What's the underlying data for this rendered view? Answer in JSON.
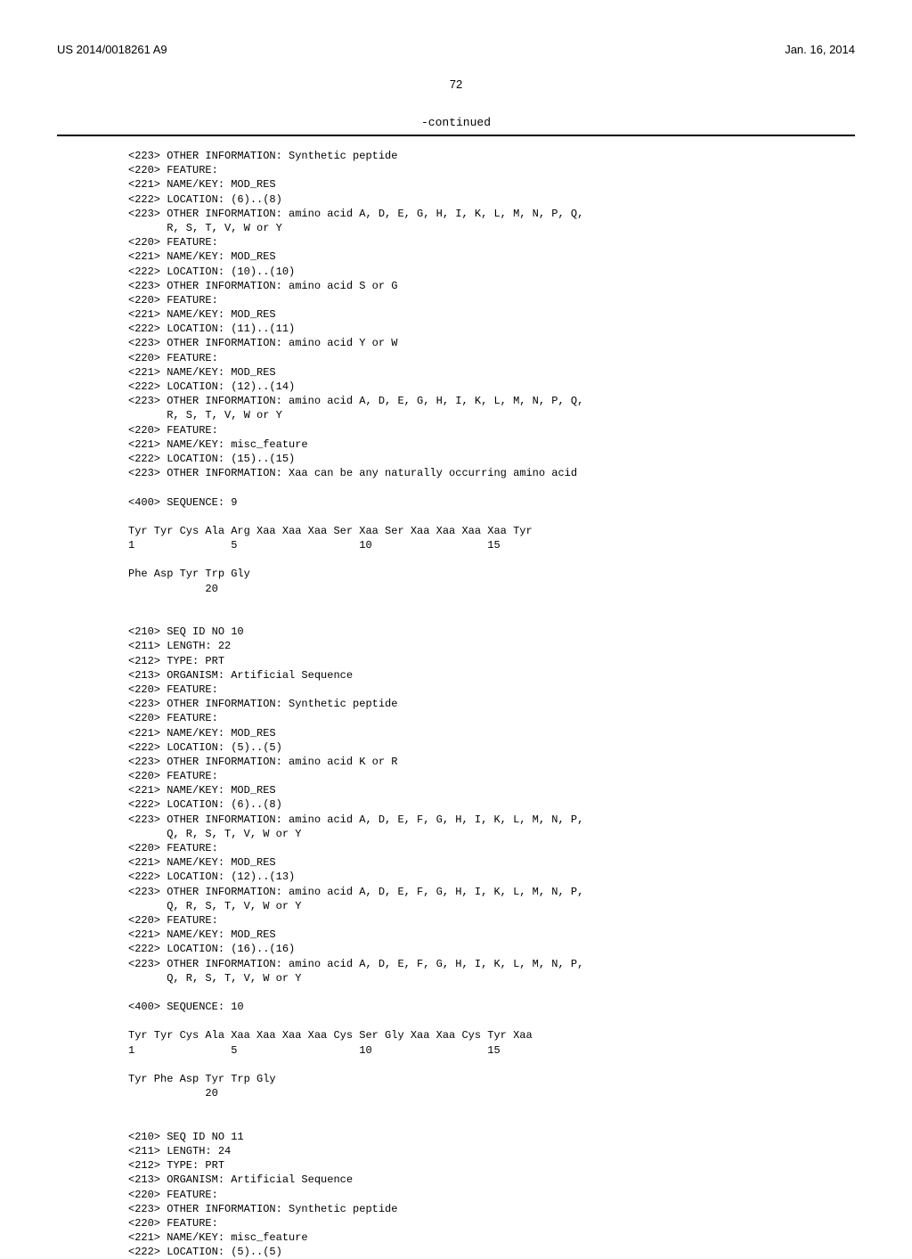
{
  "header": {
    "patent_number": "US 2014/0018261 A9",
    "date": "Jan. 16, 2014"
  },
  "page_number": "72",
  "continued": "-continued",
  "lines": [
    "<223> OTHER INFORMATION: Synthetic peptide",
    "<220> FEATURE:",
    "<221> NAME/KEY: MOD_RES",
    "<222> LOCATION: (6)..(8)",
    "<223> OTHER INFORMATION: amino acid A, D, E, G, H, I, K, L, M, N, P, Q,",
    "      R, S, T, V, W or Y",
    "<220> FEATURE:",
    "<221> NAME/KEY: MOD_RES",
    "<222> LOCATION: (10)..(10)",
    "<223> OTHER INFORMATION: amino acid S or G",
    "<220> FEATURE:",
    "<221> NAME/KEY: MOD_RES",
    "<222> LOCATION: (11)..(11)",
    "<223> OTHER INFORMATION: amino acid Y or W",
    "<220> FEATURE:",
    "<221> NAME/KEY: MOD_RES",
    "<222> LOCATION: (12)..(14)",
    "<223> OTHER INFORMATION: amino acid A, D, E, G, H, I, K, L, M, N, P, Q,",
    "      R, S, T, V, W or Y",
    "<220> FEATURE:",
    "<221> NAME/KEY: misc_feature",
    "<222> LOCATION: (15)..(15)",
    "<223> OTHER INFORMATION: Xaa can be any naturally occurring amino acid",
    "",
    "<400> SEQUENCE: 9",
    "",
    "Tyr Tyr Cys Ala Arg Xaa Xaa Xaa Ser Xaa Ser Xaa Xaa Xaa Xaa Tyr",
    "1               5                   10                  15",
    "",
    "Phe Asp Tyr Trp Gly",
    "            20",
    "",
    "",
    "<210> SEQ ID NO 10",
    "<211> LENGTH: 22",
    "<212> TYPE: PRT",
    "<213> ORGANISM: Artificial Sequence",
    "<220> FEATURE:",
    "<223> OTHER INFORMATION: Synthetic peptide",
    "<220> FEATURE:",
    "<221> NAME/KEY: MOD_RES",
    "<222> LOCATION: (5)..(5)",
    "<223> OTHER INFORMATION: amino acid K or R",
    "<220> FEATURE:",
    "<221> NAME/KEY: MOD_RES",
    "<222> LOCATION: (6)..(8)",
    "<223> OTHER INFORMATION: amino acid A, D, E, F, G, H, I, K, L, M, N, P,",
    "      Q, R, S, T, V, W or Y",
    "<220> FEATURE:",
    "<221> NAME/KEY: MOD_RES",
    "<222> LOCATION: (12)..(13)",
    "<223> OTHER INFORMATION: amino acid A, D, E, F, G, H, I, K, L, M, N, P,",
    "      Q, R, S, T, V, W or Y",
    "<220> FEATURE:",
    "<221> NAME/KEY: MOD_RES",
    "<222> LOCATION: (16)..(16)",
    "<223> OTHER INFORMATION: amino acid A, D, E, F, G, H, I, K, L, M, N, P,",
    "      Q, R, S, T, V, W or Y",
    "",
    "<400> SEQUENCE: 10",
    "",
    "Tyr Tyr Cys Ala Xaa Xaa Xaa Xaa Cys Ser Gly Xaa Xaa Cys Tyr Xaa",
    "1               5                   10                  15",
    "",
    "Tyr Phe Asp Tyr Trp Gly",
    "            20",
    "",
    "",
    "<210> SEQ ID NO 11",
    "<211> LENGTH: 24",
    "<212> TYPE: PRT",
    "<213> ORGANISM: Artificial Sequence",
    "<220> FEATURE:",
    "<223> OTHER INFORMATION: Synthetic peptide",
    "<220> FEATURE:",
    "<221> NAME/KEY: misc_feature",
    "<222> LOCATION: (5)..(5)"
  ]
}
